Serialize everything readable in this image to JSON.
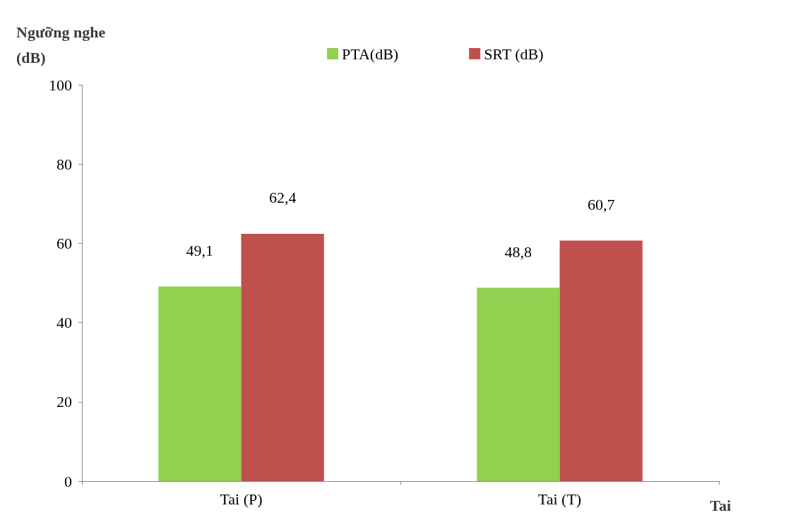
{
  "chart_data": {
    "type": "bar",
    "ylabel": "Ngưỡng nghe\n(dB)",
    "xlabel": "Tai",
    "categories": [
      "Tai (P)",
      "Tai (T)"
    ],
    "series": [
      {
        "name": "PTA(dB)",
        "color": "#92d050",
        "values": [
          49.1,
          48.8
        ],
        "value_labels": [
          "49,1",
          "48,8"
        ]
      },
      {
        "name": "SRT (dB)",
        "color": "#c0504d",
        "values": [
          62.4,
          60.7
        ],
        "value_labels": [
          "62,4",
          "60,7"
        ]
      }
    ],
    "ylim": [
      0,
      100
    ],
    "yticks": [
      0,
      20,
      40,
      60,
      80,
      100
    ],
    "grid": false,
    "legend": "top"
  }
}
